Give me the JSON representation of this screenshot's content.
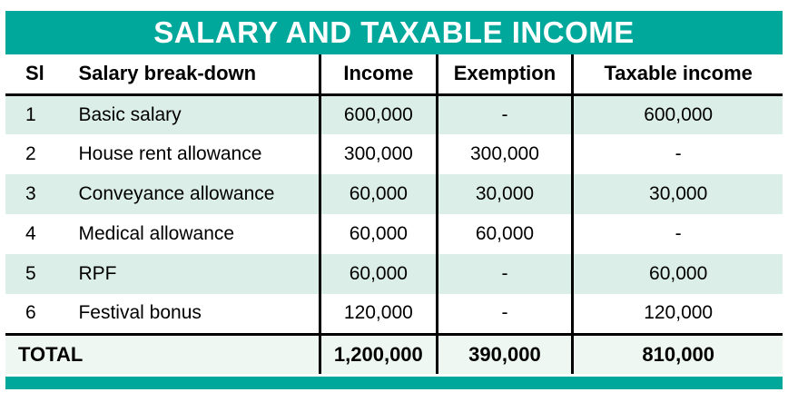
{
  "title": "SALARY AND TAXABLE INCOME",
  "colors": {
    "teal": "#00A89B",
    "row_tint": "#DBEEE7",
    "divider": "#000000",
    "title_text": "#FFFFFF"
  },
  "table": {
    "headers": [
      "Sl",
      "Salary break-down",
      "Income",
      "Exemption",
      "Taxable income"
    ],
    "rows": [
      [
        "1",
        "Basic salary",
        "600,000",
        "-",
        "600,000"
      ],
      [
        "2",
        "House rent allowance",
        "300,000",
        "300,000",
        "-"
      ],
      [
        "3",
        "Conveyance allowance",
        "60,000",
        "30,000",
        "30,000"
      ],
      [
        "4",
        "Medical allowance",
        "60,000",
        "60,000",
        "-"
      ],
      [
        "5",
        "RPF",
        "60,000",
        "-",
        "60,000"
      ],
      [
        "6",
        "Festival bonus",
        "120,000",
        "-",
        "120,000"
      ]
    ],
    "total": {
      "label": "TOTAL",
      "income": "1,200,000",
      "exemption": "390,000",
      "taxable": "810,000"
    }
  },
  "chart_data": {
    "type": "table",
    "title": "SALARY AND TAXABLE INCOME",
    "columns": [
      "Sl",
      "Salary break-down",
      "Income",
      "Exemption",
      "Taxable income"
    ],
    "rows": [
      [
        1,
        "Basic salary",
        600000,
        null,
        600000
      ],
      [
        2,
        "House rent allowance",
        300000,
        300000,
        null
      ],
      [
        3,
        "Conveyance allowance",
        60000,
        30000,
        30000
      ],
      [
        4,
        "Medical allowance",
        60000,
        60000,
        null
      ],
      [
        5,
        "RPF",
        60000,
        null,
        60000
      ],
      [
        6,
        "Festival bonus",
        120000,
        null,
        120000
      ]
    ],
    "totals": {
      "label": "TOTAL",
      "income": 1200000,
      "exemption": 390000,
      "taxable": 810000
    }
  }
}
